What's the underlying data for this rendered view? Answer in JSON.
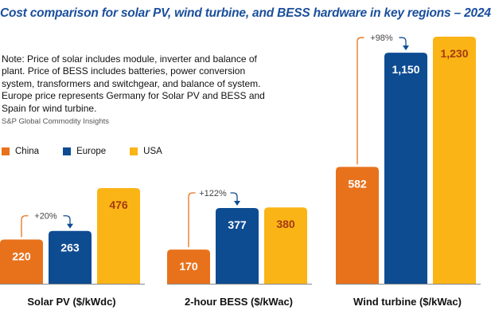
{
  "chart_data": {
    "type": "bar",
    "title": "Cost comparison for solar PV, wind turbine, and BESS hardware in key regions – 2024",
    "note": "Note: Price of solar includes module, inverter and balance of plant. Price of BESS includes batteries, power conversion system, transformers and switchgear, and balance of system. Europe price represents Germany for Solar PV and BESS and Spain for wind turbine.",
    "source": "S&P Global Commodity Insights",
    "categories": [
      "Solar PV ($/kWdc)",
      "2-hour BESS ($/kWac)",
      "Wind turbine ($/kWac)"
    ],
    "series": [
      {
        "name": "China",
        "color": "#e8721c",
        "values": [
          220,
          170,
          582
        ],
        "labels": [
          "220",
          "170",
          "582"
        ]
      },
      {
        "name": "Europe",
        "color": "#0e4c92",
        "values": [
          263,
          377,
          1150
        ],
        "labels": [
          "263",
          "377",
          "1,150"
        ]
      },
      {
        "name": "USA",
        "color": "#fbb416",
        "values": [
          476,
          380,
          1230
        ],
        "labels": [
          "476",
          "380",
          "1,230"
        ]
      }
    ],
    "annotations": [
      "+20%",
      "+122%",
      "+98%"
    ],
    "legend_position": "top-left",
    "ylim": [
      0,
      1230
    ],
    "grid": false
  }
}
